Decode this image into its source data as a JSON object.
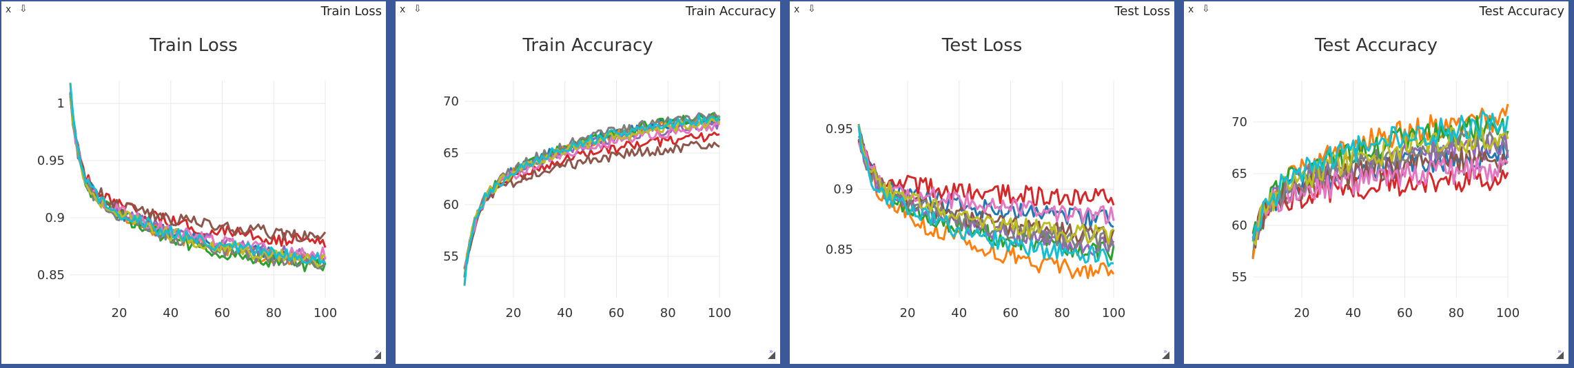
{
  "window_controls": {
    "close_label": "x",
    "download_label": "⇩"
  },
  "panes": [
    {
      "window_title": "Train Loss",
      "series_id": "train_loss"
    },
    {
      "window_title": "Train Accuracy",
      "series_id": "train_acc"
    },
    {
      "window_title": "Test Loss",
      "series_id": "test_loss"
    },
    {
      "window_title": "Test Accuracy",
      "series_id": "test_acc"
    }
  ],
  "series_colors": [
    "#1f77b4",
    "#ff7f0e",
    "#2ca02c",
    "#d62728",
    "#9467bd",
    "#8c564b",
    "#e377c2",
    "#7f7f7f",
    "#bcbd22",
    "#17becf"
  ],
  "chart_data": [
    {
      "id": "train_loss",
      "type": "line",
      "title": "Train Loss",
      "xlim": [
        1,
        100
      ],
      "ylim": [
        0.83,
        1.02
      ],
      "xticks": [
        20,
        40,
        60,
        80,
        100
      ],
      "yticks": [
        0.85,
        0.9,
        0.95,
        1
      ],
      "ytick_labels": [
        "0.85",
        "0.9",
        "0.95",
        "1"
      ],
      "start": 1.01,
      "mid": 0.93,
      "end": [
        0.855,
        0.852,
        0.848,
        0.872,
        0.858,
        0.878,
        0.86,
        0.85,
        0.854,
        0.856
      ],
      "noise": 0.006,
      "grid": true,
      "legend": "none",
      "series_count": 10
    },
    {
      "id": "train_acc",
      "type": "line",
      "title": "Train Accuracy",
      "xlim": [
        1,
        100
      ],
      "ylim": [
        51,
        72
      ],
      "xticks": [
        20,
        40,
        60,
        80,
        100
      ],
      "yticks": [
        55,
        60,
        65,
        70
      ],
      "ytick_labels": [
        "55",
        "60",
        "65",
        "70"
      ],
      "start": 53,
      "mid": 60,
      "end": [
        69.5,
        69.2,
        69.6,
        67.5,
        68.8,
        66.5,
        68.5,
        69.8,
        69.0,
        69.4
      ],
      "noise": 0.5,
      "grid": true,
      "legend": "none",
      "series_count": 10
    },
    {
      "id": "test_loss",
      "type": "line",
      "title": "Test Loss",
      "xlim": [
        1,
        100
      ],
      "ylim": [
        0.81,
        0.99
      ],
      "xticks": [
        20,
        40,
        60,
        80,
        100
      ],
      "yticks": [
        0.85,
        0.9,
        0.95
      ],
      "ytick_labels": [
        "0.85",
        "0.9",
        "0.95"
      ],
      "start": 0.95,
      "mid": 0.91,
      "end": [
        0.87,
        0.82,
        0.84,
        0.89,
        0.845,
        0.855,
        0.875,
        0.85,
        0.855,
        0.835
      ],
      "noise": 0.008,
      "grid": true,
      "legend": "none",
      "series_count": 10
    },
    {
      "id": "test_acc",
      "type": "line",
      "title": "Test Accuracy",
      "xlim": [
        1,
        100
      ],
      "ylim": [
        53,
        74
      ],
      "xticks": [
        20,
        40,
        60,
        80,
        100
      ],
      "yticks": [
        55,
        60,
        65,
        70
      ],
      "ytick_labels": [
        "55",
        "60",
        "65",
        "70"
      ],
      "start": 58,
      "mid": 62,
      "end": [
        67.5,
        71.5,
        70.5,
        65.0,
        68.5,
        67.0,
        66.0,
        69.0,
        69.5,
        71.0
      ],
      "noise": 1.3,
      "grid": true,
      "legend": "none",
      "series_count": 10
    }
  ]
}
